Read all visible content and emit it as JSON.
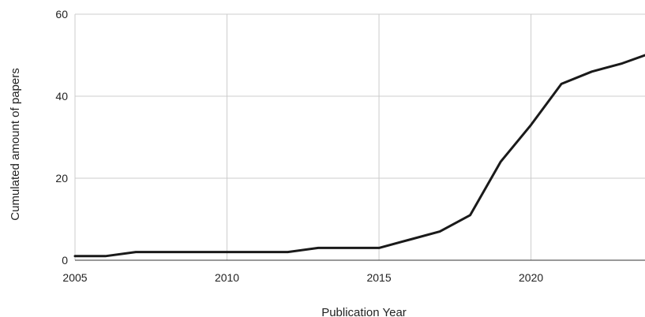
{
  "chart_data": {
    "type": "line",
    "xlabel": "Publication Year",
    "ylabel": "Cumulated amount of papers",
    "xlim": [
      2005,
      2023.75
    ],
    "ylim": [
      0,
      60
    ],
    "x_ticks": [
      2005,
      2010,
      2015,
      2020
    ],
    "y_ticks": [
      0,
      20,
      40,
      60
    ],
    "grid": true,
    "legend": "none",
    "series": [
      {
        "color": "#1a1a1a",
        "x": [
          2005,
          2006,
          2007,
          2008,
          2009,
          2010,
          2011,
          2012,
          2013,
          2014,
          2015,
          2016,
          2017,
          2018,
          2019,
          2020,
          2021,
          2022,
          2023,
          2023.75
        ],
        "y": [
          1,
          1,
          2,
          2,
          2,
          2,
          2,
          2,
          3,
          3,
          3,
          5,
          7,
          11,
          24,
          33,
          43,
          46,
          48,
          50
        ]
      }
    ]
  }
}
